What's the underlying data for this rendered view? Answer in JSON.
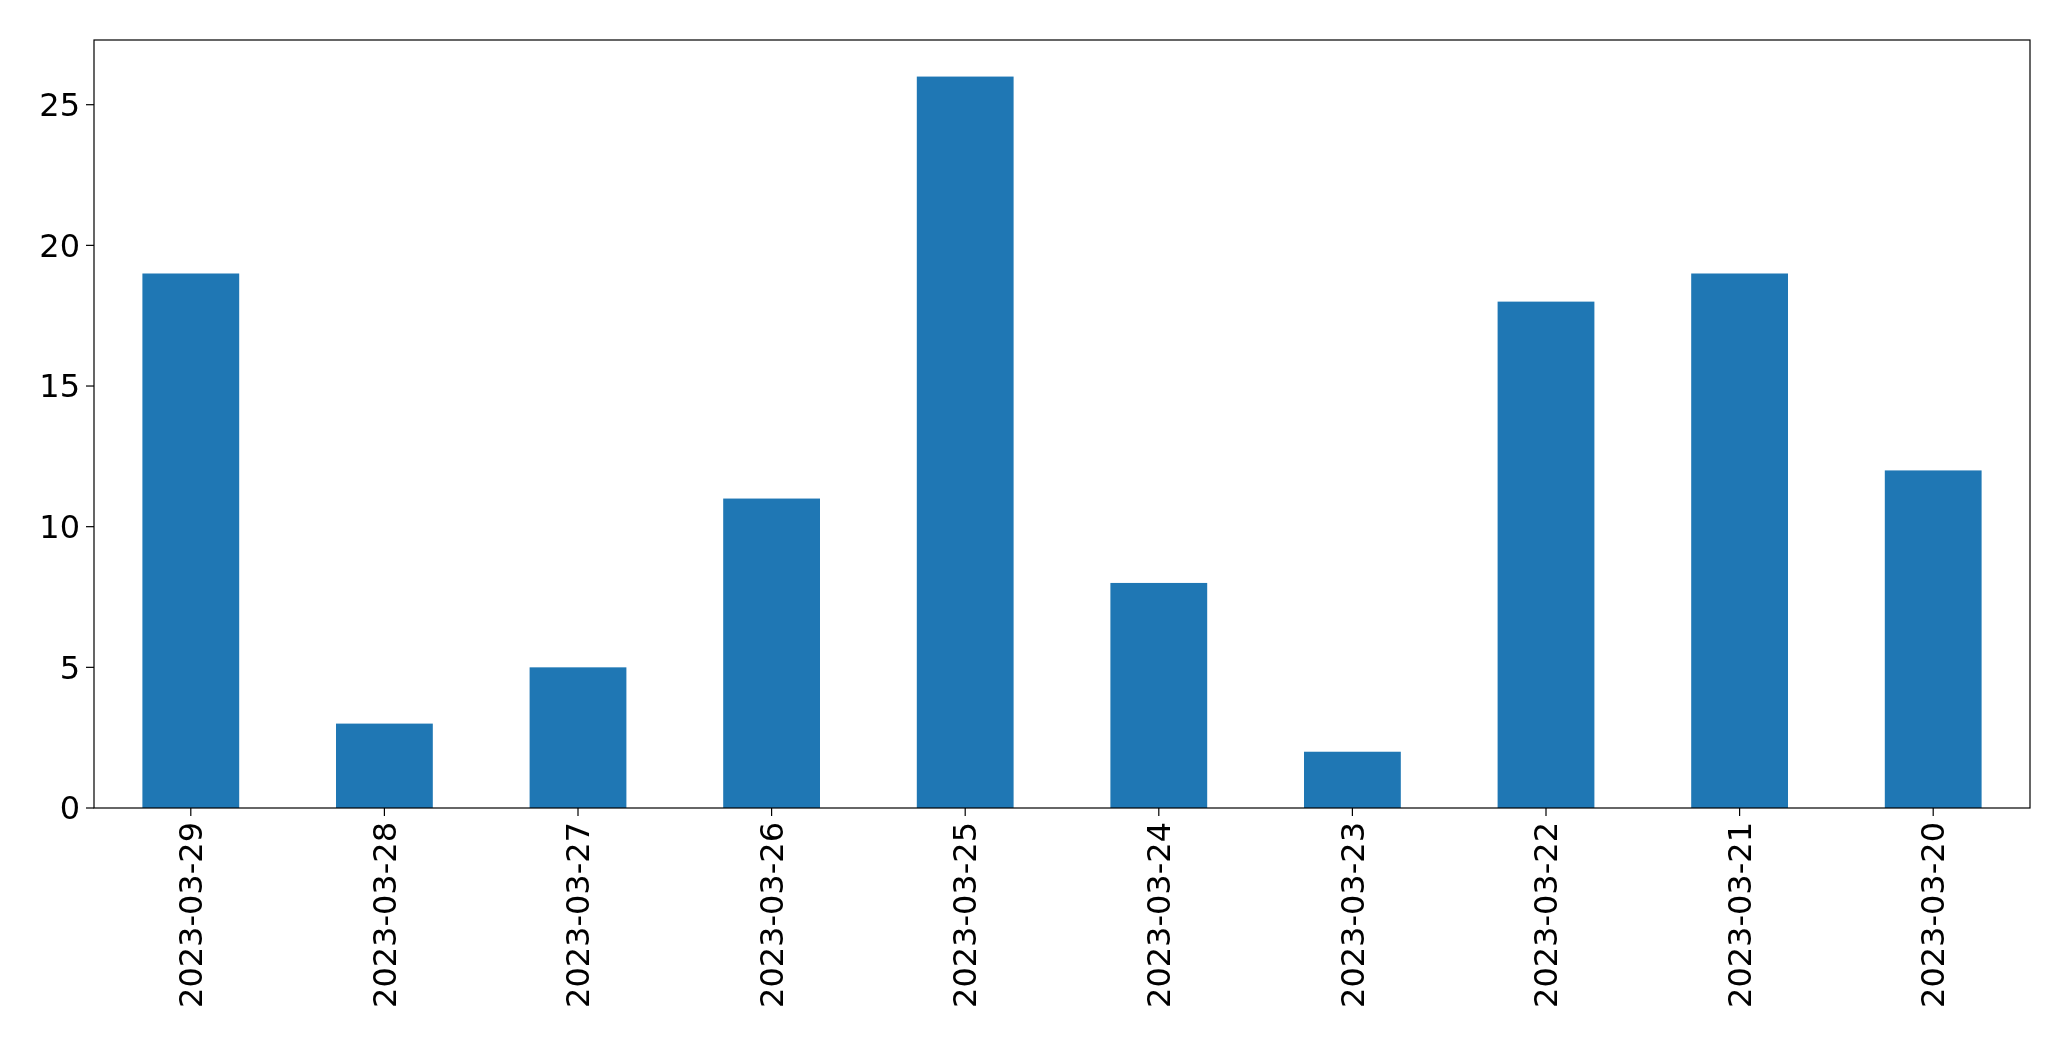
{
  "chart_data": {
    "type": "bar",
    "categories": [
      "2023-03-29",
      "2023-03-28",
      "2023-03-27",
      "2023-03-26",
      "2023-03-25",
      "2023-03-24",
      "2023-03-23",
      "2023-03-22",
      "2023-03-21",
      "2023-03-20"
    ],
    "values": [
      19,
      3,
      5,
      11,
      26,
      8,
      2,
      18,
      19,
      12
    ],
    "color": "#1f77b4",
    "ylim": [
      0,
      27.3
    ],
    "yticks": [
      0,
      5,
      10,
      15,
      20,
      25
    ],
    "grid": false
  }
}
